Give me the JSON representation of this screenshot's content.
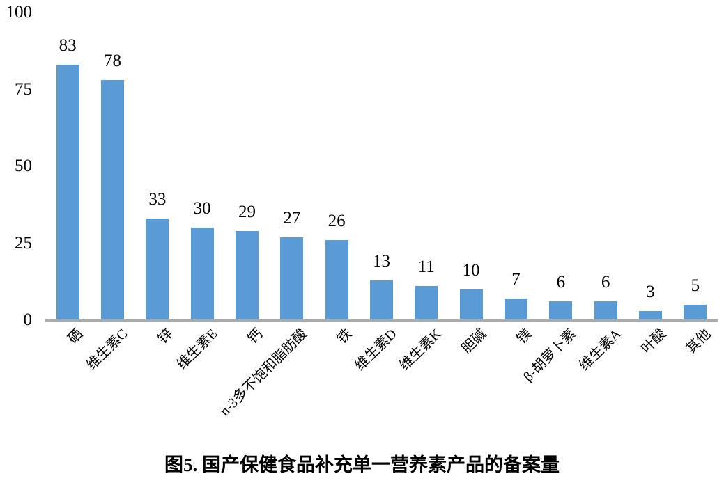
{
  "chart_data": {
    "type": "bar",
    "categories": [
      "硒",
      "维生素C",
      "锌",
      "维生素E",
      "钙",
      "n-3多不饱和脂肪酸",
      "铁",
      "维生素D",
      "维生素K",
      "胆碱",
      "镁",
      "β-胡萝卜素",
      "维生素A",
      "叶酸",
      "其他"
    ],
    "values": [
      83,
      78,
      33,
      30,
      29,
      27,
      26,
      13,
      11,
      10,
      7,
      6,
      6,
      3,
      5
    ],
    "title": "图5. 国产保健食品补充单一营养素产品的备案量",
    "xlabel": "",
    "ylabel": "",
    "ylim": [
      0,
      100
    ],
    "yticks": [
      0,
      25,
      50,
      75,
      100
    ],
    "data_labels": true,
    "grid": false,
    "legend": false,
    "colors": {
      "bar": "#5B9BD5",
      "axis_line": "#ABABAB",
      "text": "#000000",
      "background": "#FFFFFF"
    }
  }
}
